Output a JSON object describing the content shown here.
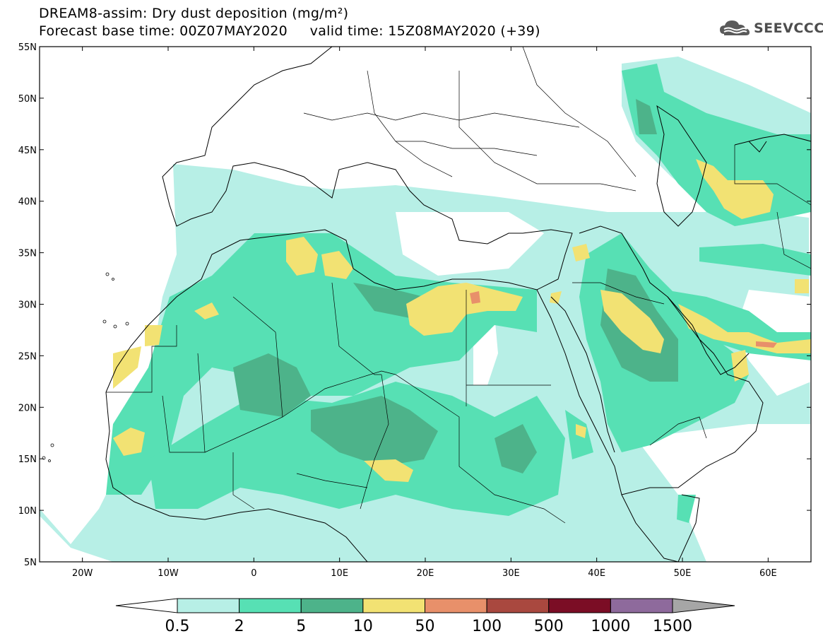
{
  "header": {
    "line1": "DREAM8-assim: Dry dust deposition (mg/m²)",
    "line2": "Forecast base time: 00Z07MAY2020     valid time: 15Z08MAY2020 (+39)"
  },
  "logo": {
    "text": "SEEVCCC",
    "icon": "cloud-icon"
  },
  "map": {
    "lat_labels": [
      "55N",
      "50N",
      "45N",
      "40N",
      "35N",
      "30N",
      "25N",
      "20N",
      "15N",
      "10N",
      "5N"
    ],
    "lon_labels": [
      "20W",
      "10W",
      "0",
      "10E",
      "20E",
      "30E",
      "40E",
      "50E",
      "60E"
    ],
    "extent": {
      "lon": [
        -25,
        65
      ],
      "lat": [
        5,
        55
      ]
    }
  },
  "colorbar": {
    "labels": [
      "0.5",
      "2",
      "5",
      "10",
      "50",
      "100",
      "500",
      "1000",
      "1500"
    ],
    "colors": [
      "#b7efe6",
      "#57e0b4",
      "#4db38a",
      "#f2e273",
      "#e8906a",
      "#a9483f",
      "#7b0d25",
      "#8e6a9c"
    ],
    "under_color": "#ffffff",
    "over_color": "#a6a6a6"
  },
  "legend": {
    "level_colors": {
      "0.5": "#b7efe6",
      "2": "#57e0b4",
      "5": "#4db38a",
      "10": "#f2e273",
      "50": "#e8906a"
    }
  }
}
